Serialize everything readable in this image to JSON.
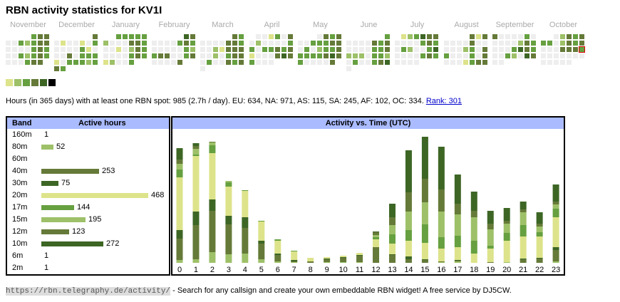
{
  "title": "RBN activity statistics for KV1I",
  "colors": {
    "level1": "#dde38a",
    "level2": "#9dc068",
    "level3": "#66a040",
    "level4": "#657a38",
    "level5": "#3d6625",
    "level6": "#000000",
    "empty": "#eeeeee",
    "today_marker": "#e00000",
    "header": "#aabbff"
  },
  "heatmap": {
    "months": [
      {
        "name": "November",
        "weeks": [
          "    344",
          "0032344",
          "0000343",
          "0032343",
          "000344 "
        ]
      },
      {
        "name": "December",
        "weeks": [
          "      4",
          "0100103",
          "0000310",
          "0040333",
          "1033323",
          "43     "
        ]
      },
      {
        "name": "January",
        "weeks": [
          "  33333",
          "2000443",
          "0010243",
          "0000343",
          "12003  "
        ]
      },
      {
        "name": "February",
        "weeks": [
          "     54",
          "0000343",
          "0000032",
          "3440034",
          "00004  "
        ]
      },
      {
        "name": "March",
        "weeks": [
          "     43",
          "0000443",
          "0021444",
          "0020344",
          "0300434",
          "0      "
        ]
      },
      {
        "name": "April",
        "weeks": [
          " 001304",
          "0200003",
          "3033434",
          "1000454",
          "3000   "
        ]
      },
      {
        "name": "May",
        "weeks": [
          "   0434",
          "0033344",
          "0302334",
          "3333454",
          "300004 "
        ]
      },
      {
        "name": "June",
        "weeks": [
          "      3",
          "0000434",
          "0000334",
          "2220332",
          "0300345",
          "0      "
        ]
      },
      {
        "name": "July",
        "weeks": [
          " 123544",
          "0000343",
          "0320035",
          "0000343",
          "0000   "
        ]
      },
      {
        "name": "August",
        "weeks": [
          "    414",
          "0000400",
          "0002304",
          "3000304",
          "0001344"
        ]
      },
      {
        "name": "September",
        "weeks": [
          "4000030",
          "0000243",
          "0003543",
          "0032054",
          "00     "
        ]
      },
      {
        "name": "October",
        "weeks": [
          "  02434",
          "3302434",
          "0004443",
          "0000000",
          "00000  "
        ],
        "today": {
          "week": 2,
          "day": 6
        }
      }
    ],
    "legend_levels": [
      1,
      2,
      3,
      4,
      5,
      6
    ]
  },
  "summary": {
    "text": "Hours (in 365 days) with at least one RBN spot: 985 (2.7h / day). EU: 634, NA: 971, AS: 115, SA: 245, AF: 102, OC: 334. ",
    "rank_link": "Rank: 301"
  },
  "bands": {
    "header_band": "Band",
    "header_hours": "Active hours",
    "rows": [
      {
        "band": "160m",
        "hours": 1,
        "hours_label": "1",
        "color": ""
      },
      {
        "band": "80m",
        "hours": 52,
        "hours_label": "52",
        "color": "#9dc068"
      },
      {
        "band": "60m",
        "hours": 0,
        "hours_label": "",
        "color": ""
      },
      {
        "band": "40m",
        "hours": 253,
        "hours_label": "253",
        "color": "#657a38"
      },
      {
        "band": "30m",
        "hours": 75,
        "hours_label": "75",
        "color": "#3d6625"
      },
      {
        "band": "20m",
        "hours": 468,
        "hours_label": "468",
        "color": "#dde38a"
      },
      {
        "band": "17m",
        "hours": 144,
        "hours_label": "144",
        "color": "#66a040"
      },
      {
        "band": "15m",
        "hours": 195,
        "hours_label": "195",
        "color": "#9dc068"
      },
      {
        "band": "12m",
        "hours": 123,
        "hours_label": "123",
        "color": "#657a38"
      },
      {
        "band": "10m",
        "hours": 272,
        "hours_label": "272",
        "color": "#3d6625"
      },
      {
        "band": "6m",
        "hours": 1,
        "hours_label": "1",
        "color": ""
      },
      {
        "band": "2m",
        "hours": 1,
        "hours_label": "1",
        "color": ""
      }
    ]
  },
  "chart_data": {
    "type": "bar",
    "stacked": true,
    "title": "Activity vs. Time (UTC)",
    "categories": [
      "0",
      "1",
      "2",
      "3",
      "4",
      "5",
      "6",
      "7",
      "8",
      "9",
      "10",
      "11",
      "12",
      "13",
      "14",
      "15",
      "16",
      "17",
      "18",
      "19",
      "20",
      "21",
      "22",
      "23"
    ],
    "segment_order": [
      "80m",
      "40m",
      "30m",
      "20m",
      "17m",
      "15m",
      "12m",
      "10m"
    ],
    "segment_colors": [
      "#9dc068",
      "#657a38",
      "#3d6625",
      "#dde38a",
      "#66a040",
      "#9dc068",
      "#657a38",
      "#3d6625"
    ],
    "values": [
      [
        4,
        30,
        12,
        74,
        11,
        8,
        6,
        16
      ],
      [
        5,
        48,
        19,
        78,
        2,
        8,
        4,
        4
      ],
      [
        15,
        58,
        16,
        65,
        11,
        4,
        1,
        0
      ],
      [
        12,
        42,
        12,
        41,
        6,
        2,
        0,
        0
      ],
      [
        13,
        36,
        15,
        37,
        1,
        0,
        0,
        0
      ],
      [
        5,
        22,
        4,
        27,
        1,
        0,
        0,
        0
      ],
      [
        2,
        9,
        2,
        18,
        2,
        0,
        0,
        0
      ],
      [
        1,
        1,
        2,
        12,
        1,
        0,
        0,
        0
      ],
      [
        0,
        2,
        0,
        5,
        0,
        0,
        0,
        0
      ],
      [
        1,
        4,
        1,
        2,
        0,
        0,
        0,
        0
      ],
      [
        1,
        6,
        1,
        2,
        0,
        0,
        0,
        0
      ],
      [
        1,
        9,
        1,
        3,
        0,
        0,
        0,
        0
      ],
      [
        0,
        22,
        0,
        11,
        3,
        3,
        4,
        1
      ],
      [
        0,
        11,
        1,
        15,
        13,
        13,
        11,
        19
      ],
      [
        0,
        5,
        4,
        22,
        15,
        26,
        27,
        59
      ],
      [
        0,
        4,
        1,
        23,
        26,
        31,
        33,
        59
      ],
      [
        1,
        1,
        0,
        18,
        16,
        36,
        31,
        60
      ],
      [
        2,
        1,
        1,
        18,
        16,
        30,
        15,
        41
      ],
      [
        0,
        0,
        0,
        13,
        18,
        33,
        9,
        27
      ],
      [
        0,
        1,
        0,
        19,
        4,
        23,
        8,
        18
      ],
      [
        1,
        0,
        0,
        30,
        11,
        13,
        4,
        18
      ],
      [
        0,
        5,
        1,
        31,
        16,
        18,
        4,
        11
      ],
      [
        0,
        6,
        1,
        30,
        6,
        8,
        4,
        16
      ],
      [
        2,
        16,
        4,
        42,
        12,
        6,
        4,
        24
      ]
    ],
    "ylim": [
      0,
      180
    ],
    "grid": false
  },
  "footer": {
    "url": "https://rbn.telegraphy.de/activity/",
    "text": " - Search for any callsign and create your own embeddable RBN widget! A free service by DJ5CW."
  }
}
